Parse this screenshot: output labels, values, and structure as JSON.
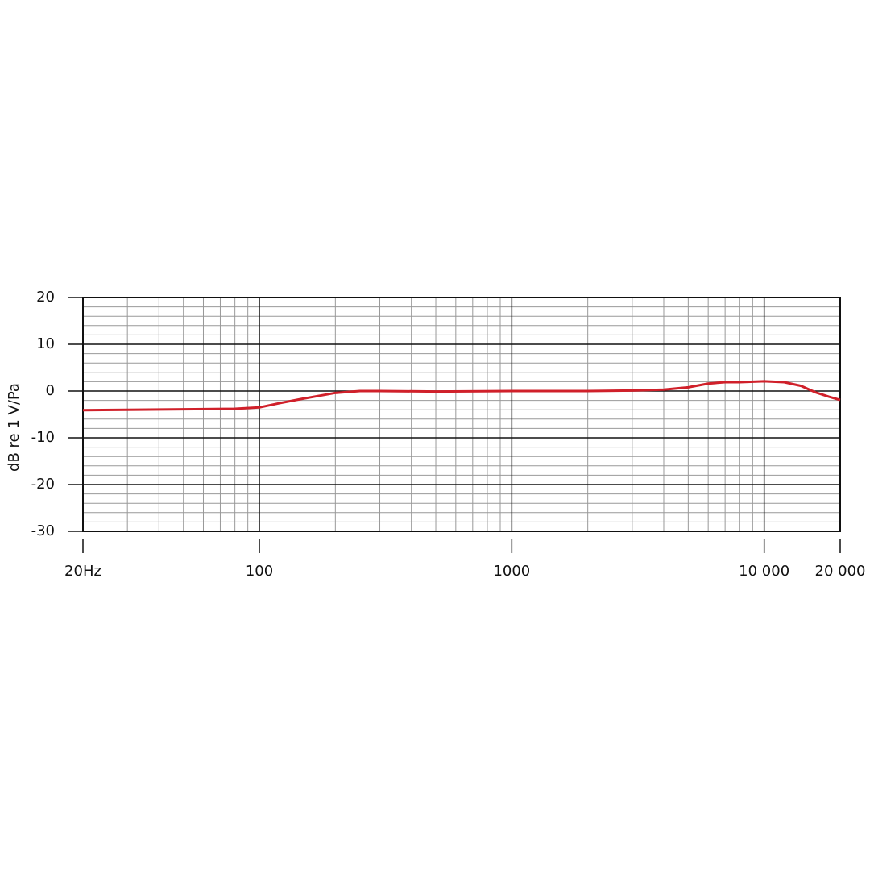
{
  "chart_data": {
    "type": "line",
    "y_label": "dB re 1 V/Pa",
    "log_x": true,
    "x": [
      20,
      30,
      50,
      80,
      100,
      120,
      150,
      200,
      250,
      300,
      500,
      1000,
      2000,
      3000,
      4000,
      5000,
      6000,
      7000,
      8000,
      10000,
      12000,
      14000,
      16000,
      18000,
      20000
    ],
    "series": [
      {
        "color": "#d0202a",
        "values": [
          -4.1,
          -4.0,
          -3.9,
          -3.8,
          -3.5,
          -2.6,
          -1.6,
          -0.4,
          0,
          0,
          -0.1,
          0,
          0,
          0.1,
          0.3,
          0.8,
          1.6,
          1.9,
          1.9,
          2.1,
          1.9,
          1.1,
          -0.3,
          -1.2,
          -1.9
        ]
      }
    ],
    "xlim": [
      20,
      20000
    ],
    "ylim": [
      -30,
      20
    ],
    "xticks": [
      {
        "value": 20,
        "label": "20Hz"
      },
      100,
      1000,
      {
        "value": 10000,
        "label": "10 000"
      },
      {
        "value": 20000,
        "label": "20 000"
      }
    ],
    "yticks": [
      -30,
      -20,
      -10,
      0,
      10,
      20
    ],
    "x_minor_grid": [
      30,
      40,
      50,
      60,
      70,
      80,
      90,
      200,
      300,
      400,
      500,
      600,
      700,
      800,
      900,
      2000,
      3000,
      4000,
      5000,
      6000,
      7000,
      8000,
      9000
    ],
    "y_minor_grid": [
      -28,
      -26,
      -24,
      -22,
      -18,
      -16,
      -14,
      -12,
      -8,
      -6,
      -4,
      -2,
      2,
      4,
      6,
      8,
      12,
      14,
      16,
      18
    ],
    "grid": true
  }
}
